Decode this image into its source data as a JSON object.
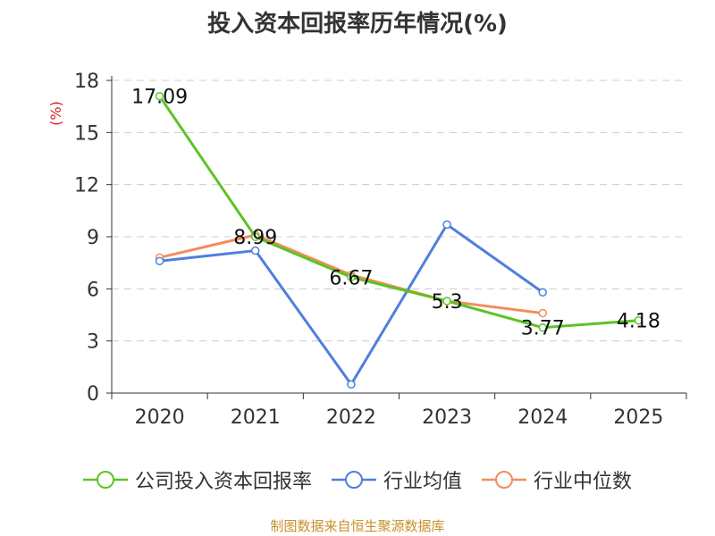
{
  "title": "投入资本回报率历年情况(%)",
  "source": "制图数据来自恒生聚源数据库",
  "chart_data": {
    "type": "line",
    "title": "投入资本回报率历年情况(%)",
    "ylabel": "(%)",
    "xlabel": "",
    "categories": [
      "2020",
      "2021",
      "2022",
      "2023",
      "2024",
      "2025"
    ],
    "ylim": [
      0,
      18
    ],
    "yticks": [
      0,
      3,
      6,
      9,
      12,
      15,
      18
    ],
    "grid": true,
    "legend_position": "bottom",
    "series": [
      {
        "name": "公司投入资本回报率",
        "color": "#5cc424",
        "values": [
          17.09,
          8.99,
          6.67,
          5.3,
          3.77,
          4.18
        ],
        "labels": [
          "17.09",
          "8.99",
          "6.67",
          "5.3",
          "3.77",
          "4.18"
        ]
      },
      {
        "name": "行业均值",
        "color": "#4f7fdd",
        "values": [
          7.6,
          8.2,
          0.5,
          9.7,
          5.8,
          null
        ]
      },
      {
        "name": "行业中位数",
        "color": "#f28c5c",
        "values": [
          7.8,
          9.1,
          6.8,
          5.3,
          4.6,
          null
        ]
      }
    ]
  }
}
